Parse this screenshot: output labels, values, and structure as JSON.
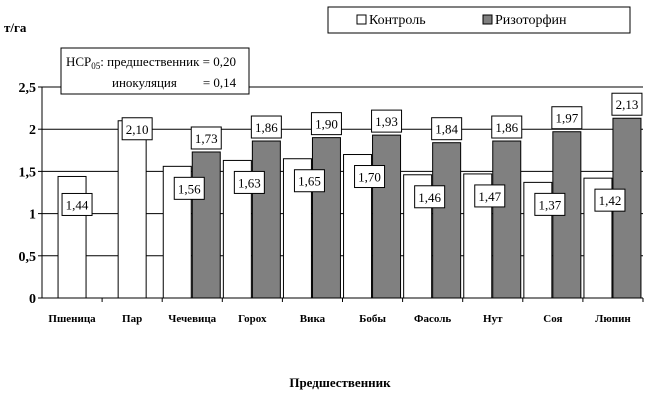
{
  "chart_data": {
    "type": "bar",
    "ylabel": "т/га",
    "xlabel": "Предшественник",
    "ylim": [
      0,
      2.5
    ],
    "yticks": [
      "0",
      "0,5",
      "1",
      "1,5",
      "2",
      "2,5"
    ],
    "categories": [
      "Пшеница",
      "Пар",
      "Чечевица",
      "Горох",
      "Вика",
      "Бобы",
      "Фасоль",
      "Нут",
      "Соя",
      "Люпин"
    ],
    "series": [
      {
        "name": "Контроль",
        "color": "#ffffff",
        "values": [
          1.44,
          2.1,
          1.56,
          1.63,
          1.65,
          1.7,
          1.46,
          1.47,
          1.37,
          1.42
        ],
        "labels": [
          "1,44",
          "2,10",
          "1,56",
          "1,63",
          "1,65",
          "1,70",
          "1,46",
          "1,47",
          "1,37",
          "1,42"
        ]
      },
      {
        "name": "Ризоторфин",
        "color": "#808080",
        "values": [
          null,
          null,
          1.73,
          1.86,
          1.9,
          1.93,
          1.84,
          1.86,
          1.97,
          2.13
        ],
        "labels": [
          "",
          "",
          "1,73",
          "1,86",
          "1,90",
          "1,93",
          "1,84",
          "1,86",
          "1,97",
          "2,13"
        ]
      }
    ],
    "annotation": {
      "hsr_prefix": "НСР",
      "hsr_sub": "05",
      "line1": ": предшественник = 0,20",
      "line2": "инокуляция        = 0,14"
    },
    "grid": true,
    "legend_position": "top-right"
  }
}
